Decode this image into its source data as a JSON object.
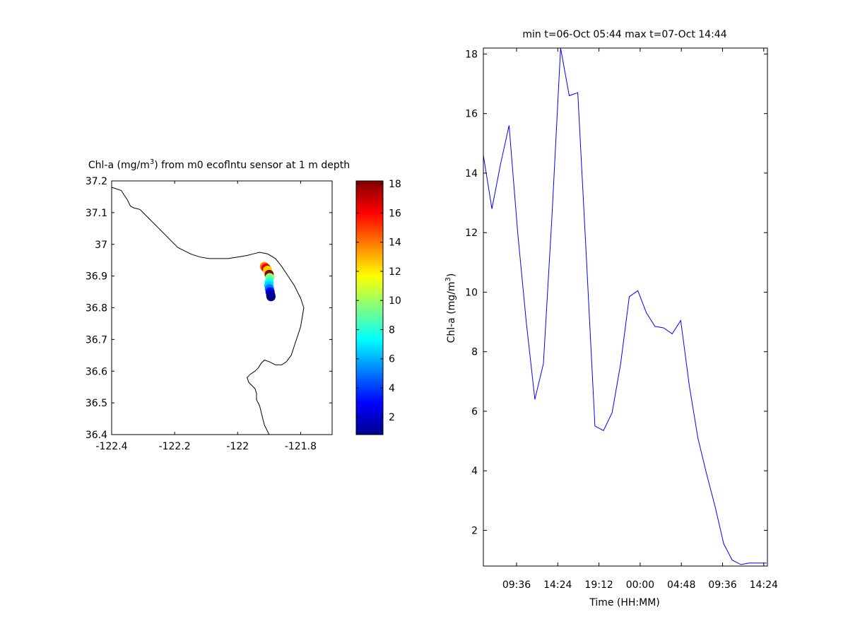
{
  "chart_data": [
    {
      "type": "scatter",
      "title_parts": {
        "pre": "Chl-a (mg/m",
        "sup": "3",
        "post": ") from m0 ecoflntu sensor at 1 m depth"
      },
      "xlim": [
        -122.4,
        -121.7
      ],
      "ylim": [
        36.4,
        37.2
      ],
      "xticks": [
        -122.4,
        -122.2,
        -122,
        -121.8
      ],
      "xtick_labels": [
        "-122.4",
        "-122.2",
        "-122",
        "-121.8"
      ],
      "yticks": [
        36.4,
        36.5,
        36.6,
        36.7,
        36.8,
        36.9,
        37,
        37.1,
        37.2
      ],
      "ytick_labels": [
        "36.4",
        "36.5",
        "36.6",
        "36.7",
        "36.8",
        "36.9",
        "37",
        "37.1",
        "37.2"
      ],
      "grid": false,
      "points": [
        {
          "lon": -121.915,
          "lat": 36.93,
          "value": 14.0
        },
        {
          "lon": -121.91,
          "lat": 36.925,
          "value": 16.5
        },
        {
          "lon": -121.905,
          "lat": 36.918,
          "value": 12.5
        },
        {
          "lon": -121.9,
          "lat": 36.905,
          "value": 18.0
        },
        {
          "lon": -121.898,
          "lat": 36.895,
          "value": 9.5
        },
        {
          "lon": -121.9,
          "lat": 36.88,
          "value": 7.5
        },
        {
          "lon": -121.901,
          "lat": 36.87,
          "value": 6.5
        },
        {
          "lon": -121.899,
          "lat": 36.86,
          "value": 5.0
        },
        {
          "lon": -121.897,
          "lat": 36.85,
          "value": 3.0
        },
        {
          "lon": -121.895,
          "lat": 36.84,
          "value": 1.5
        },
        {
          "lon": -121.894,
          "lat": 36.835,
          "value": 1.0
        }
      ],
      "coastline": [
        [
          -122.4,
          37.18
        ],
        [
          -122.37,
          37.17
        ],
        [
          -122.35,
          37.14
        ],
        [
          -122.34,
          37.12
        ],
        [
          -122.33,
          37.115
        ],
        [
          -122.31,
          37.11
        ],
        [
          -122.29,
          37.09
        ],
        [
          -122.27,
          37.07
        ],
        [
          -122.25,
          37.05
        ],
        [
          -122.23,
          37.03
        ],
        [
          -122.21,
          37.01
        ],
        [
          -122.19,
          36.99
        ],
        [
          -122.17,
          36.98
        ],
        [
          -122.15,
          36.97
        ],
        [
          -122.12,
          36.96
        ],
        [
          -122.09,
          36.955
        ],
        [
          -122.06,
          36.955
        ],
        [
          -122.03,
          36.955
        ],
        [
          -122.0,
          36.96
        ],
        [
          -121.97,
          36.965
        ],
        [
          -121.95,
          36.97
        ],
        [
          -121.93,
          36.975
        ],
        [
          -121.905,
          36.97
        ],
        [
          -121.88,
          36.955
        ],
        [
          -121.86,
          36.93
        ],
        [
          -121.84,
          36.9
        ],
        [
          -121.82,
          36.87
        ],
        [
          -121.8,
          36.83
        ],
        [
          -121.79,
          36.8
        ],
        [
          -121.795,
          36.77
        ],
        [
          -121.8,
          36.74
        ],
        [
          -121.81,
          36.71
        ],
        [
          -121.82,
          36.68
        ],
        [
          -121.83,
          36.65
        ],
        [
          -121.845,
          36.63
        ],
        [
          -121.86,
          36.62
        ],
        [
          -121.88,
          36.62
        ],
        [
          -121.9,
          36.63
        ],
        [
          -121.915,
          36.635
        ],
        [
          -121.925,
          36.625
        ],
        [
          -121.935,
          36.61
        ],
        [
          -121.945,
          36.6
        ],
        [
          -121.96,
          36.59
        ],
        [
          -121.97,
          36.58
        ],
        [
          -121.965,
          36.565
        ],
        [
          -121.955,
          36.555
        ],
        [
          -121.945,
          36.545
        ],
        [
          -121.94,
          36.53
        ],
        [
          -121.94,
          36.51
        ],
        [
          -121.93,
          36.49
        ],
        [
          -121.925,
          36.47
        ],
        [
          -121.92,
          36.45
        ],
        [
          -121.915,
          36.43
        ],
        [
          -121.905,
          36.41
        ],
        [
          -121.9,
          36.4
        ]
      ]
    },
    {
      "type": "colorbar",
      "clim": [
        0.8,
        18.2
      ],
      "ticks": [
        2,
        4,
        6,
        8,
        10,
        12,
        14,
        16,
        18
      ],
      "tick_labels": [
        "2",
        "4",
        "6",
        "8",
        "10",
        "12",
        "14",
        "16",
        "18"
      ],
      "colormap": "jet"
    },
    {
      "type": "line",
      "title": "min t=06-Oct 05:44 max t=07-Oct 14:44",
      "xlabel": "Time (HH:MM)",
      "ylabel_parts": {
        "pre": "Chl-a (mg/m",
        "sup": "3",
        "post": ")"
      },
      "x_unit": "hours since 06-Oct 00:00",
      "xlim": [
        5.73,
        38.83
      ],
      "ylim": [
        0.8,
        18.2
      ],
      "xticks": [
        9.6,
        14.4,
        19.2,
        24.0,
        28.8,
        33.6,
        38.4
      ],
      "xtick_labels": [
        "09:36",
        "14:24",
        "19:12",
        "00:00",
        "04:48",
        "09:36",
        "14:24"
      ],
      "yticks": [
        2,
        4,
        6,
        8,
        10,
        12,
        14,
        16,
        18
      ],
      "ytick_labels": [
        "2",
        "4",
        "6",
        "8",
        "10",
        "12",
        "14",
        "16",
        "18"
      ],
      "grid": false,
      "color": "#0000ff",
      "x": [
        5.73,
        6.73,
        7.73,
        8.73,
        9.73,
        10.73,
        11.73,
        12.73,
        13.73,
        14.73,
        15.73,
        16.73,
        17.73,
        18.73,
        19.73,
        20.73,
        21.73,
        22.73,
        23.73,
        24.73,
        25.73,
        26.73,
        27.73,
        28.73,
        29.73,
        30.73,
        31.73,
        32.73,
        33.73,
        34.73,
        35.73,
        36.73,
        37.73,
        38.73
      ],
      "y": [
        14.6,
        12.8,
        14.3,
        15.6,
        12.0,
        9.0,
        6.4,
        7.6,
        12.6,
        18.2,
        16.6,
        16.7,
        11.2,
        5.5,
        5.35,
        5.95,
        7.6,
        9.85,
        10.05,
        9.3,
        8.85,
        8.8,
        8.6,
        9.05,
        6.85,
        5.1,
        3.9,
        2.8,
        1.55,
        1.0,
        0.85,
        0.9,
        0.9,
        0.9
      ]
    }
  ]
}
